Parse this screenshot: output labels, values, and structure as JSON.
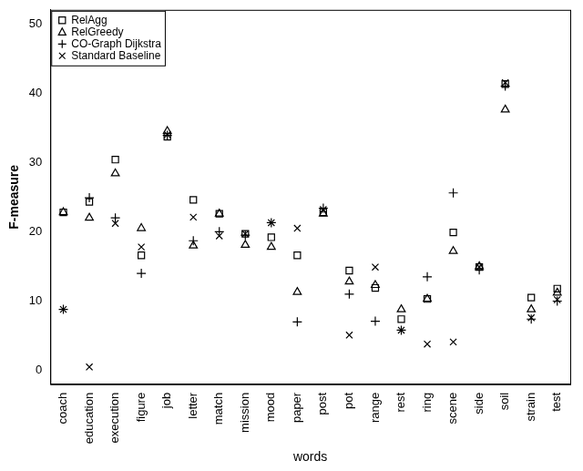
{
  "chart_data": {
    "type": "scatter",
    "x_label": "words",
    "y_label": "F-measure",
    "categories": [
      "coach",
      "education",
      "execution",
      "figure",
      "job",
      "letter",
      "match",
      "mission",
      "mood",
      "paper",
      "post",
      "pot",
      "range",
      "rest",
      "ring",
      "scene",
      "side",
      "soil",
      "strain",
      "test"
    ],
    "series": [
      {
        "name": "RelAgg",
        "color": "#000000",
        "marker": "square",
        "values": [
          22.8,
          24.3,
          30.4,
          16.6,
          33.7,
          24.6,
          22.6,
          19.7,
          19.2,
          16.6,
          22.8,
          14.4,
          11.9,
          7.4,
          10.3,
          19.9,
          14.9,
          41.3,
          10.5,
          11.8
        ]
      },
      {
        "name": "RelGreedy",
        "color": "#000000",
        "marker": "triangle",
        "values": [
          22.8,
          22.0,
          28.4,
          20.5,
          34.5,
          18.0,
          22.6,
          18.1,
          17.8,
          11.3,
          22.6,
          12.8,
          12.3,
          8.8,
          10.3,
          17.2,
          15.0,
          37.6,
          8.8,
          11.2
        ]
      },
      {
        "name": "CO-Graph Dijkstra",
        "color": "#000000",
        "marker": "plus",
        "values": [
          8.8,
          24.9,
          22.0,
          14.0,
          33.9,
          18.7,
          20.0,
          19.5,
          21.3,
          7.0,
          23.4,
          11.0,
          7.1,
          5.8,
          13.5,
          25.6,
          14.5,
          41.0,
          7.4,
          10.0
        ]
      },
      {
        "name": "Standard Baseline",
        "color": "#000000",
        "marker": "x",
        "values": [
          8.8,
          0.5,
          21.2,
          17.8,
          34.0,
          22.1,
          19.4,
          19.7,
          21.3,
          20.5,
          23.2,
          5.1,
          14.9,
          5.8,
          3.8,
          4.1,
          14.9,
          41.5,
          7.6,
          10.2
        ]
      }
    ],
    "ylim": [
      -2,
      52
    ],
    "yticks": [
      0,
      10,
      20,
      30,
      40,
      50
    ],
    "grid": false,
    "legend": "upper left"
  }
}
